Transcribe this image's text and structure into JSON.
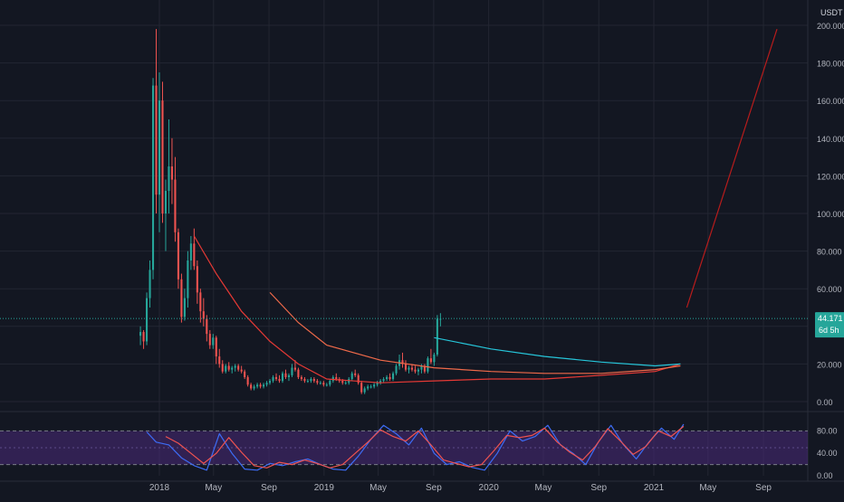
{
  "theme": {
    "background": "#131722",
    "grid": "#232632",
    "axis_text": "#b2b5be",
    "candle_up": "#26a69a",
    "candle_down": "#ef5350",
    "ma_short": "#e53935",
    "ma_mid": "#f06a4a",
    "ma_long": "#26c6da",
    "forecast_line": "#b71c1c",
    "rsi_band": "#4a2a7a",
    "stoch_k": "#3d6cf5",
    "stoch_d": "#ef5350",
    "price_tag": "#26a69a"
  },
  "price_panel": {
    "currency": "USDT",
    "y_ticks": [
      "0.00",
      "20.000",
      "40.000",
      "60.000",
      "80.000",
      "100.000",
      "120.000",
      "140.000",
      "160.000",
      "180.000",
      "200.000"
    ],
    "last_price": "44.171",
    "countdown": "6d 5h"
  },
  "osc_panel": {
    "y_ticks": [
      "0.00",
      "40.00",
      "80.00"
    ],
    "upper_band": 80,
    "lower_band": 20
  },
  "x_axis": {
    "ticks": [
      "2018",
      "May",
      "Sep",
      "2019",
      "May",
      "Sep",
      "2020",
      "May",
      "Sep",
      "2021",
      "May",
      "Sep"
    ]
  },
  "chart_data": [
    {
      "type": "candlestick",
      "interval": "weekly",
      "start": "2017-11-20",
      "ylim": [
        0,
        200
      ],
      "ohlc": [
        [
          35,
          40,
          30,
          37
        ],
        [
          37,
          38,
          28,
          32
        ],
        [
          32,
          58,
          30,
          55
        ],
        [
          55,
          75,
          50,
          70
        ],
        [
          70,
          172,
          65,
          168
        ],
        [
          168,
          198,
          100,
          110
        ],
        [
          110,
          175,
          90,
          160
        ],
        [
          160,
          170,
          95,
          100
        ],
        [
          100,
          118,
          80,
          112
        ],
        [
          112,
          150,
          100,
          125
        ],
        [
          125,
          140,
          105,
          118
        ],
        [
          118,
          130,
          85,
          90
        ],
        [
          90,
          92,
          60,
          65
        ],
        [
          65,
          68,
          42,
          45
        ],
        [
          45,
          60,
          43,
          55
        ],
        [
          55,
          80,
          50,
          75
        ],
        [
          75,
          88,
          70,
          84
        ],
        [
          84,
          92,
          70,
          72
        ],
        [
          72,
          75,
          52,
          58
        ],
        [
          58,
          60,
          42,
          48
        ],
        [
          48,
          55,
          40,
          44
        ],
        [
          44,
          46,
          32,
          36
        ],
        [
          36,
          38,
          28,
          30
        ],
        [
          30,
          36,
          28,
          34
        ],
        [
          34,
          35,
          20,
          24
        ],
        [
          24,
          28,
          18,
          20
        ],
        [
          20,
          22,
          15,
          16
        ],
        [
          16,
          20,
          15,
          19
        ],
        [
          19,
          21,
          16,
          17
        ],
        [
          17,
          19,
          15,
          18
        ],
        [
          18,
          20,
          16,
          19
        ],
        [
          19,
          20,
          16,
          17
        ],
        [
          17,
          19,
          15,
          16
        ],
        [
          16,
          17,
          12,
          13
        ],
        [
          13,
          14,
          8,
          9
        ],
        [
          9,
          10,
          6,
          7
        ],
        [
          7,
          9,
          6,
          8
        ],
        [
          8,
          10,
          7,
          9
        ],
        [
          9,
          10,
          7,
          8
        ],
        [
          8,
          10,
          7,
          9
        ],
        [
          9,
          11,
          8,
          10
        ],
        [
          10,
          12,
          9,
          11
        ],
        [
          11,
          14,
          10,
          13
        ],
        [
          13,
          15,
          11,
          12
        ],
        [
          12,
          14,
          10,
          11
        ],
        [
          11,
          16,
          10,
          15
        ],
        [
          15,
          17,
          12,
          13
        ],
        [
          13,
          15,
          11,
          14
        ],
        [
          14,
          20,
          13,
          18
        ],
        [
          18,
          22,
          16,
          17
        ],
        [
          17,
          18,
          12,
          13
        ],
        [
          13,
          14,
          11,
          12
        ],
        [
          12,
          13,
          10,
          11
        ],
        [
          11,
          12,
          10,
          11
        ],
        [
          11,
          13,
          10,
          12
        ],
        [
          12,
          13,
          10,
          11
        ],
        [
          11,
          12,
          9,
          10
        ],
        [
          10,
          11,
          9,
          10
        ],
        [
          10,
          11,
          8,
          9
        ],
        [
          9,
          10,
          8,
          9
        ],
        [
          9,
          12,
          8,
          11
        ],
        [
          11,
          14,
          10,
          13
        ],
        [
          13,
          15,
          11,
          12
        ],
        [
          12,
          13,
          10,
          11
        ],
        [
          11,
          12,
          9,
          10
        ],
        [
          10,
          11,
          9,
          10
        ],
        [
          10,
          13,
          9,
          12
        ],
        [
          12,
          16,
          11,
          15
        ],
        [
          15,
          17,
          13,
          14
        ],
        [
          14,
          15,
          9,
          10
        ],
        [
          10,
          11,
          4,
          5
        ],
        [
          5,
          8,
          4,
          7
        ],
        [
          7,
          9,
          6,
          8
        ],
        [
          8,
          9,
          7,
          8
        ],
        [
          8,
          10,
          7,
          9
        ],
        [
          9,
          11,
          8,
          10
        ],
        [
          10,
          12,
          9,
          11
        ],
        [
          11,
          13,
          10,
          12
        ],
        [
          12,
          14,
          11,
          13
        ],
        [
          13,
          15,
          11,
          12
        ],
        [
          12,
          16,
          11,
          15
        ],
        [
          15,
          20,
          14,
          19
        ],
        [
          19,
          25,
          17,
          22
        ],
        [
          22,
          26,
          18,
          20
        ],
        [
          20,
          22,
          16,
          17
        ],
        [
          17,
          19,
          15,
          18
        ],
        [
          18,
          20,
          16,
          17
        ],
        [
          17,
          19,
          15,
          16
        ],
        [
          16,
          18,
          14,
          17
        ],
        [
          17,
          20,
          15,
          19
        ],
        [
          19,
          20,
          15,
          16
        ],
        [
          16,
          24,
          15,
          23
        ],
        [
          23,
          28,
          20,
          21
        ],
        [
          21,
          26,
          19,
          25
        ],
        [
          25,
          46,
          24,
          44
        ],
        [
          44,
          47,
          40,
          44
        ]
      ]
    },
    {
      "type": "line",
      "x": [
        "2018-03-19",
        "2018-05-07",
        "2018-07-02",
        "2018-09-03",
        "2018-11-05",
        "2019-01-07",
        "2019-05-06",
        "2019-09-02",
        "2020-01-06",
        "2020-05-04",
        "2020-09-07",
        "2021-01-04",
        "2021-03-01"
      ],
      "y": [
        88,
        68,
        48,
        32,
        20,
        12,
        10,
        11,
        12,
        12,
        14,
        16,
        20
      ]
    },
    {
      "type": "line",
      "x": [
        "2018-09-03",
        "2018-11-05",
        "2019-01-07",
        "2019-05-06",
        "2019-09-02",
        "2020-01-06",
        "2020-05-04",
        "2020-09-07",
        "2021-01-04",
        "2021-03-01"
      ],
      "y": [
        58,
        42,
        30,
        22,
        18,
        16,
        15,
        15,
        17,
        19
      ]
    },
    {
      "type": "line",
      "x": [
        "2019-09-02",
        "2020-01-06",
        "2020-05-04",
        "2020-09-07",
        "2021-01-04",
        "2021-03-01"
      ],
      "y": [
        34,
        28,
        24,
        21,
        19,
        20
      ]
    },
    {
      "type": "line",
      "x": [
        "2021-03-15",
        "2021-10-01"
      ],
      "y": [
        50,
        198
      ]
    },
    {
      "type": "line",
      "ylim": [
        0,
        100
      ],
      "x": [
        "2017-12-04",
        "2017-12-25",
        "2018-01-22",
        "2018-02-19",
        "2018-03-19",
        "2018-04-16",
        "2018-05-14",
        "2018-06-11",
        "2018-07-09",
        "2018-08-06",
        "2018-09-03",
        "2018-10-01",
        "2018-10-29",
        "2018-11-26",
        "2018-12-24",
        "2019-01-21",
        "2019-02-18",
        "2019-03-18",
        "2019-04-15",
        "2019-05-13",
        "2019-06-10",
        "2019-07-08",
        "2019-08-05",
        "2019-09-02",
        "2019-09-30",
        "2019-10-28",
        "2019-11-25",
        "2019-12-23",
        "2020-01-20",
        "2020-02-17",
        "2020-03-16",
        "2020-04-13",
        "2020-05-11",
        "2020-06-08",
        "2020-07-06",
        "2020-08-03",
        "2020-08-31",
        "2020-09-28",
        "2020-10-26",
        "2020-11-23",
        "2020-12-21",
        "2021-01-18",
        "2021-02-15",
        "2021-03-08"
      ],
      "y": [
        78,
        60,
        55,
        32,
        18,
        10,
        75,
        40,
        12,
        10,
        22,
        18,
        25,
        30,
        20,
        12,
        10,
        35,
        65,
        90,
        75,
        55,
        85,
        40,
        20,
        25,
        15,
        10,
        40,
        80,
        62,
        70,
        90,
        55,
        40,
        20,
        60,
        90,
        55,
        30,
        60,
        85,
        65,
        92
      ]
    },
    {
      "type": "line",
      "ylim": [
        0,
        100
      ],
      "x": [
        "2018-01-15",
        "2018-02-12",
        "2018-03-12",
        "2018-04-09",
        "2018-05-07",
        "2018-06-04",
        "2018-07-02",
        "2018-07-30",
        "2018-08-27",
        "2018-09-24",
        "2018-10-22",
        "2018-11-19",
        "2018-12-17",
        "2019-01-14",
        "2019-02-11",
        "2019-03-11",
        "2019-04-08",
        "2019-05-06",
        "2019-06-03",
        "2019-07-01",
        "2019-07-29",
        "2019-08-26",
        "2019-09-23",
        "2019-10-21",
        "2019-11-18",
        "2019-12-16",
        "2020-01-13",
        "2020-02-10",
        "2020-03-09",
        "2020-04-06",
        "2020-05-04",
        "2020-06-01",
        "2020-06-29",
        "2020-07-27",
        "2020-08-24",
        "2020-09-21",
        "2020-10-19",
        "2020-11-16",
        "2020-12-14",
        "2021-01-11",
        "2021-02-08",
        "2021-03-08"
      ],
      "y": [
        70,
        58,
        40,
        22,
        40,
        68,
        42,
        18,
        14,
        24,
        20,
        28,
        22,
        14,
        20,
        40,
        60,
        82,
        70,
        62,
        80,
        55,
        28,
        22,
        16,
        20,
        45,
        72,
        68,
        72,
        85,
        60,
        42,
        28,
        52,
        84,
        62,
        38,
        52,
        80,
        70,
        88
      ]
    }
  ]
}
